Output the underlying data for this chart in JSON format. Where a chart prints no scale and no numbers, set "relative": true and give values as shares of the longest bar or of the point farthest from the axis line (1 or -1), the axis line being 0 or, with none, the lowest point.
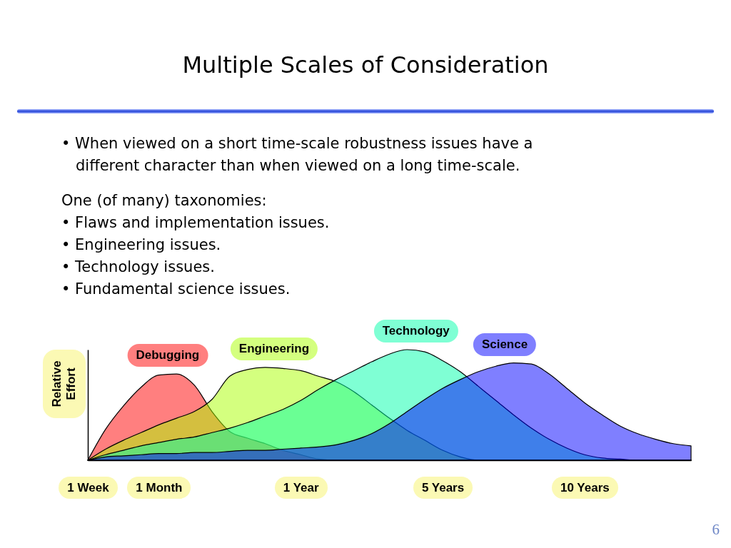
{
  "chart_data": {
    "type": "area",
    "title": "Multiple Scales of Consideration",
    "ylabel": "Relative Effort",
    "relative": true,
    "annotations": [
      "• When viewed on a short time-scale robustness issues have a different character than when viewed on a long time-scale.",
      "One (of many) taxonomies:",
      "• Flaws and implementation issues.",
      "• Engineering issues.",
      "• Technology issues.",
      "• Fundamental science issues.",
      "6"
    ],
    "categories": [
      "1 Week",
      null,
      null,
      null,
      "1 Month",
      null,
      null,
      null,
      null,
      null,
      null,
      null,
      "1 Year",
      null,
      null,
      null,
      null,
      null,
      null,
      null,
      "5 Years",
      null,
      null,
      null,
      null,
      null,
      null,
      null,
      "10 Years",
      null,
      null,
      null,
      null,
      null,
      null
    ],
    "series": [
      {
        "name": "Debugging",
        "color": "#ff0000",
        "values": [
          0,
          0.28,
          0.49,
          0.66,
          0.77,
          0.78,
          0.68,
          0.44,
          0.26,
          0.2,
          0.15,
          0.09,
          0.05,
          0.01,
          0,
          0,
          0,
          0,
          0,
          0,
          0,
          0,
          0,
          0,
          0,
          0,
          0,
          0,
          0,
          0,
          0,
          0,
          0,
          0,
          0
        ]
      },
      {
        "name": "Engineering",
        "color": "#aaff00",
        "values": [
          0,
          0.1,
          0.18,
          0.25,
          0.32,
          0.38,
          0.44,
          0.55,
          0.76,
          0.82,
          0.84,
          0.83,
          0.81,
          0.76,
          0.71,
          0.62,
          0.5,
          0.38,
          0.27,
          0.18,
          0.09,
          0.03,
          0,
          0,
          0,
          0,
          0,
          0,
          0,
          0,
          0,
          0,
          0,
          0,
          0
        ]
      },
      {
        "name": "Technology",
        "color": "#00ffaa",
        "values": [
          0,
          0.05,
          0.09,
          0.13,
          0.16,
          0.19,
          0.21,
          0.25,
          0.29,
          0.34,
          0.4,
          0.46,
          0.54,
          0.64,
          0.73,
          0.81,
          0.89,
          0.96,
          1,
          0.98,
          0.9,
          0.8,
          0.67,
          0.54,
          0.41,
          0.29,
          0.19,
          0.11,
          0.05,
          0.02,
          0.01,
          0,
          0,
          0,
          0
        ]
      },
      {
        "name": "Science",
        "color": "#0000ff",
        "values": [
          0,
          0.03,
          0.04,
          0.05,
          0.06,
          0.06,
          0.07,
          0.07,
          0.08,
          0.09,
          0.09,
          0.1,
          0.11,
          0.12,
          0.14,
          0.18,
          0.24,
          0.33,
          0.44,
          0.55,
          0.65,
          0.73,
          0.8,
          0.85,
          0.88,
          0.87,
          0.78,
          0.65,
          0.52,
          0.41,
          0.31,
          0.24,
          0.19,
          0.15,
          0.13
        ]
      }
    ]
  }
}
